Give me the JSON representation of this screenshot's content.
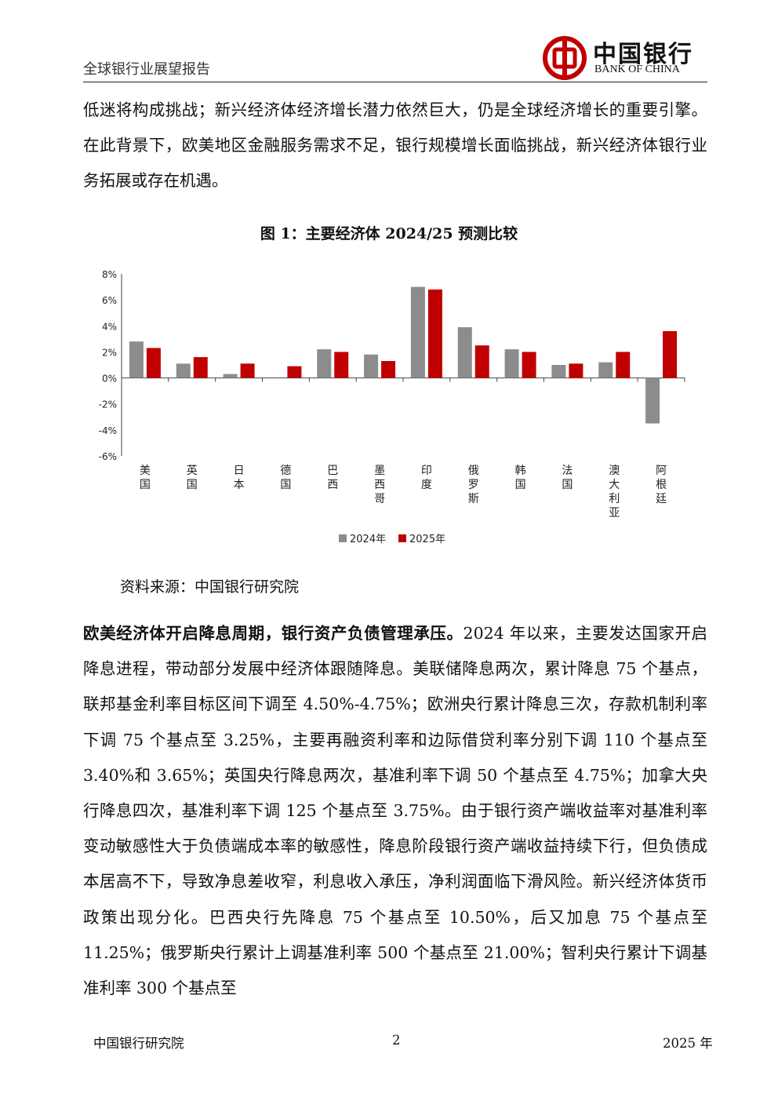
{
  "header": {
    "report_title": "全球银行业展望报告",
    "logo_cn": "中国银行",
    "logo_en": "BANK OF CHINA"
  },
  "intro_paragraph": "低迷将构成挑战；新兴经济体经济增长潜力依然巨大，仍是全球经济增长的重要引擎。在此背景下，欧美地区金融服务需求不足，银行规模增长面临挑战，新兴经济体银行业务拓展或存在机遇。",
  "figure": {
    "title": "图 1：主要经济体 2024/25 预测比较",
    "source": "资料来源：中国银行研究院"
  },
  "chart_data": {
    "type": "bar",
    "categories": [
      "美国",
      "英国",
      "日本",
      "德国",
      "巴西",
      "墨西哥",
      "印度",
      "俄罗斯",
      "韩国",
      "法国",
      "澳大利亚",
      "阿根廷"
    ],
    "series": [
      {
        "name": "2024年",
        "color": "#8c8c8c",
        "values": [
          2.8,
          1.1,
          0.3,
          0.0,
          2.2,
          1.8,
          7.0,
          3.9,
          2.2,
          1.0,
          1.2,
          -3.5
        ]
      },
      {
        "name": "2025年",
        "color": "#c00000",
        "values": [
          2.3,
          1.6,
          1.1,
          0.9,
          2.0,
          1.3,
          6.8,
          2.5,
          2.0,
          1.1,
          2.0,
          3.6
        ]
      }
    ],
    "ylim": [
      -6,
      8
    ],
    "yticks": [
      "8%",
      "6%",
      "4%",
      "2%",
      "0%",
      "-2%",
      "-4%",
      "-6%"
    ],
    "legend": "bottom",
    "grid": false
  },
  "body": {
    "lead_bold": "欧美经济体开启降息周期，银行资产负债管理承压。",
    "text": "2024 年以来，主要发达国家开启降息进程，带动部分发展中经济体跟随降息。美联储降息两次，累计降息 75 个基点，联邦基金利率目标区间下调至 4.50%-4.75%；欧洲央行累计降息三次，存款机制利率下调 75 个基点至 3.25%，主要再融资利率和边际借贷利率分别下调 110 个基点至 3.40%和 3.65%；英国央行降息两次，基准利率下调 50 个基点至 4.75%；加拿大央行降息四次，基准利率下调 125 个基点至 3.75%。由于银行资产端收益率对基准利率变动敏感性大于负债端成本率的敏感性，降息阶段银行资产端收益持续下行，但负债成本居高不下，导致净息差收窄，利息收入承压，净利润面临下滑风险。新兴经济体货币政策出现分化。巴西央行先降息 75 个基点至 10.50%，后又加息 75 个基点至 11.25%；俄罗斯央行累计上调基准利率 500 个基点至 21.00%；智利央行累计下调基准利率 300 个基点至"
  },
  "footer": {
    "org": "中国银行研究院",
    "page": "2",
    "year": "2025 年"
  }
}
